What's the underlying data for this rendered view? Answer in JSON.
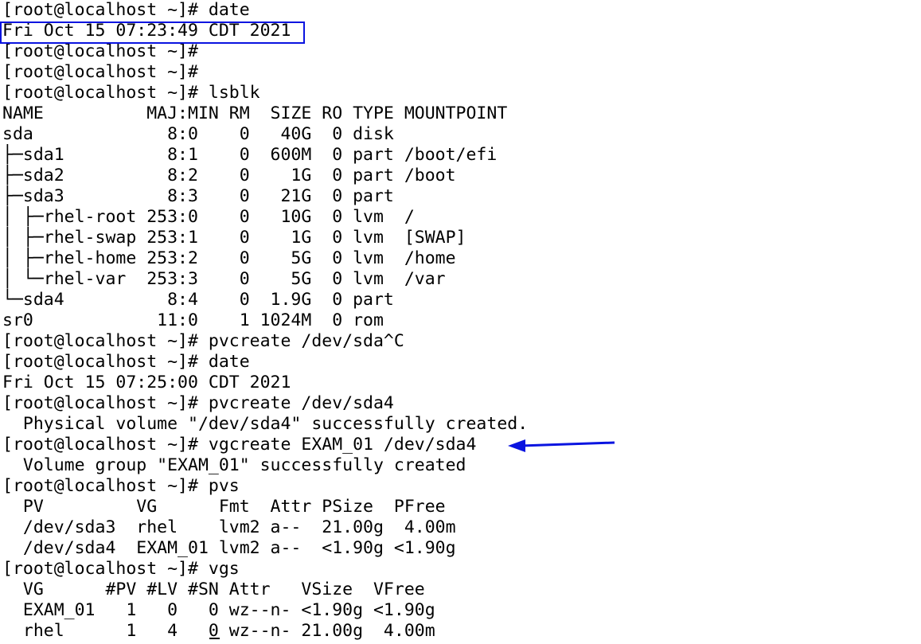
{
  "terminal": {
    "lines": [
      "[root@localhost ~]# date",
      "Fri Oct 15 07:23:49 CDT 2021",
      "[root@localhost ~]#",
      "[root@localhost ~]#",
      "[root@localhost ~]# lsblk",
      "NAME          MAJ:MIN RM  SIZE RO TYPE MOUNTPOINT",
      "sda             8:0    0   40G  0 disk",
      "├─sda1          8:1    0  600M  0 part /boot/efi",
      "├─sda2          8:2    0    1G  0 part /boot",
      "├─sda3          8:3    0   21G  0 part",
      "│ ├─rhel-root 253:0    0   10G  0 lvm  /",
      "│ ├─rhel-swap 253:1    0    1G  0 lvm  [SWAP]",
      "│ ├─rhel-home 253:2    0    5G  0 lvm  /home",
      "│ └─rhel-var  253:3    0    5G  0 lvm  /var",
      "└─sda4          8:4    0  1.9G  0 part",
      "sr0            11:0    1 1024M  0 rom",
      "[root@localhost ~]# pvcreate /dev/sda^C",
      "[root@localhost ~]# date",
      "Fri Oct 15 07:25:00 CDT 2021",
      "[root@localhost ~]# pvcreate /dev/sda4",
      "  Physical volume \"/dev/sda4\" successfully created.",
      "[root@localhost ~]# vgcreate EXAM_01 /dev/sda4",
      "  Volume group \"EXAM_01\" successfully created",
      "[root@localhost ~]# pvs",
      "  PV         VG      Fmt  Attr PSize  PFree",
      "  /dev/sda3  rhel    lvm2 a--  21.00g  4.00m",
      "  /dev/sda4  EXAM_01 lvm2 a--  <1.90g <1.90g",
      "[root@localhost ~]# vgs",
      "  VG      #PV #LV #SN Attr   VSize  VFree",
      "  EXAM_01   1   0   0 wz--n- <1.90g <1.90g",
      "  rhel      1   4   0 wz--n- 21.00g  4.00m"
    ]
  },
  "annotations": {
    "box_color": "#0a14e0",
    "arrow_color": "#0a14e0",
    "boxed_line_index": 1,
    "arrow_line_index": 21
  }
}
